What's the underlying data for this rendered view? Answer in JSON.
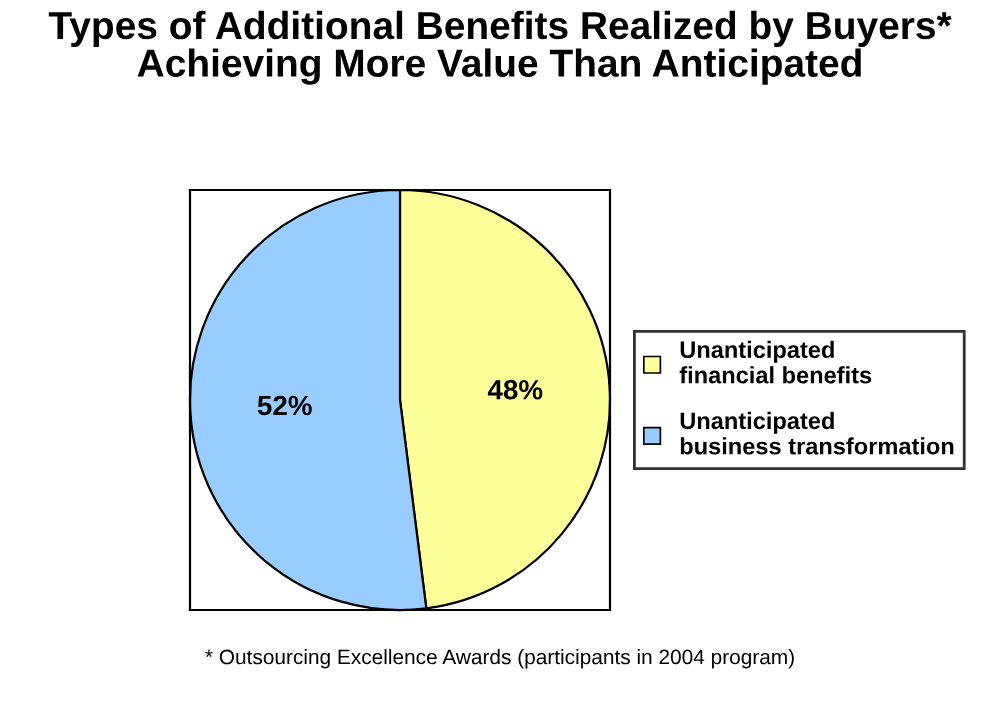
{
  "chart_data": {
    "type": "pie",
    "title": "Types of Additional Benefits Realized by Buyers* Achieving More Value Than Anticipated",
    "categories": [
      "Unanticipated financial benefits",
      "Unanticipated business transformation"
    ],
    "values": [
      48,
      52
    ],
    "colors": [
      "#ffff99",
      "#99ccff"
    ],
    "value_labels": [
      "48%",
      "52%"
    ],
    "legend": "right",
    "annotations": [
      "* Outsourcing Excellence Awards (participants in 2004 program)"
    ]
  }
}
